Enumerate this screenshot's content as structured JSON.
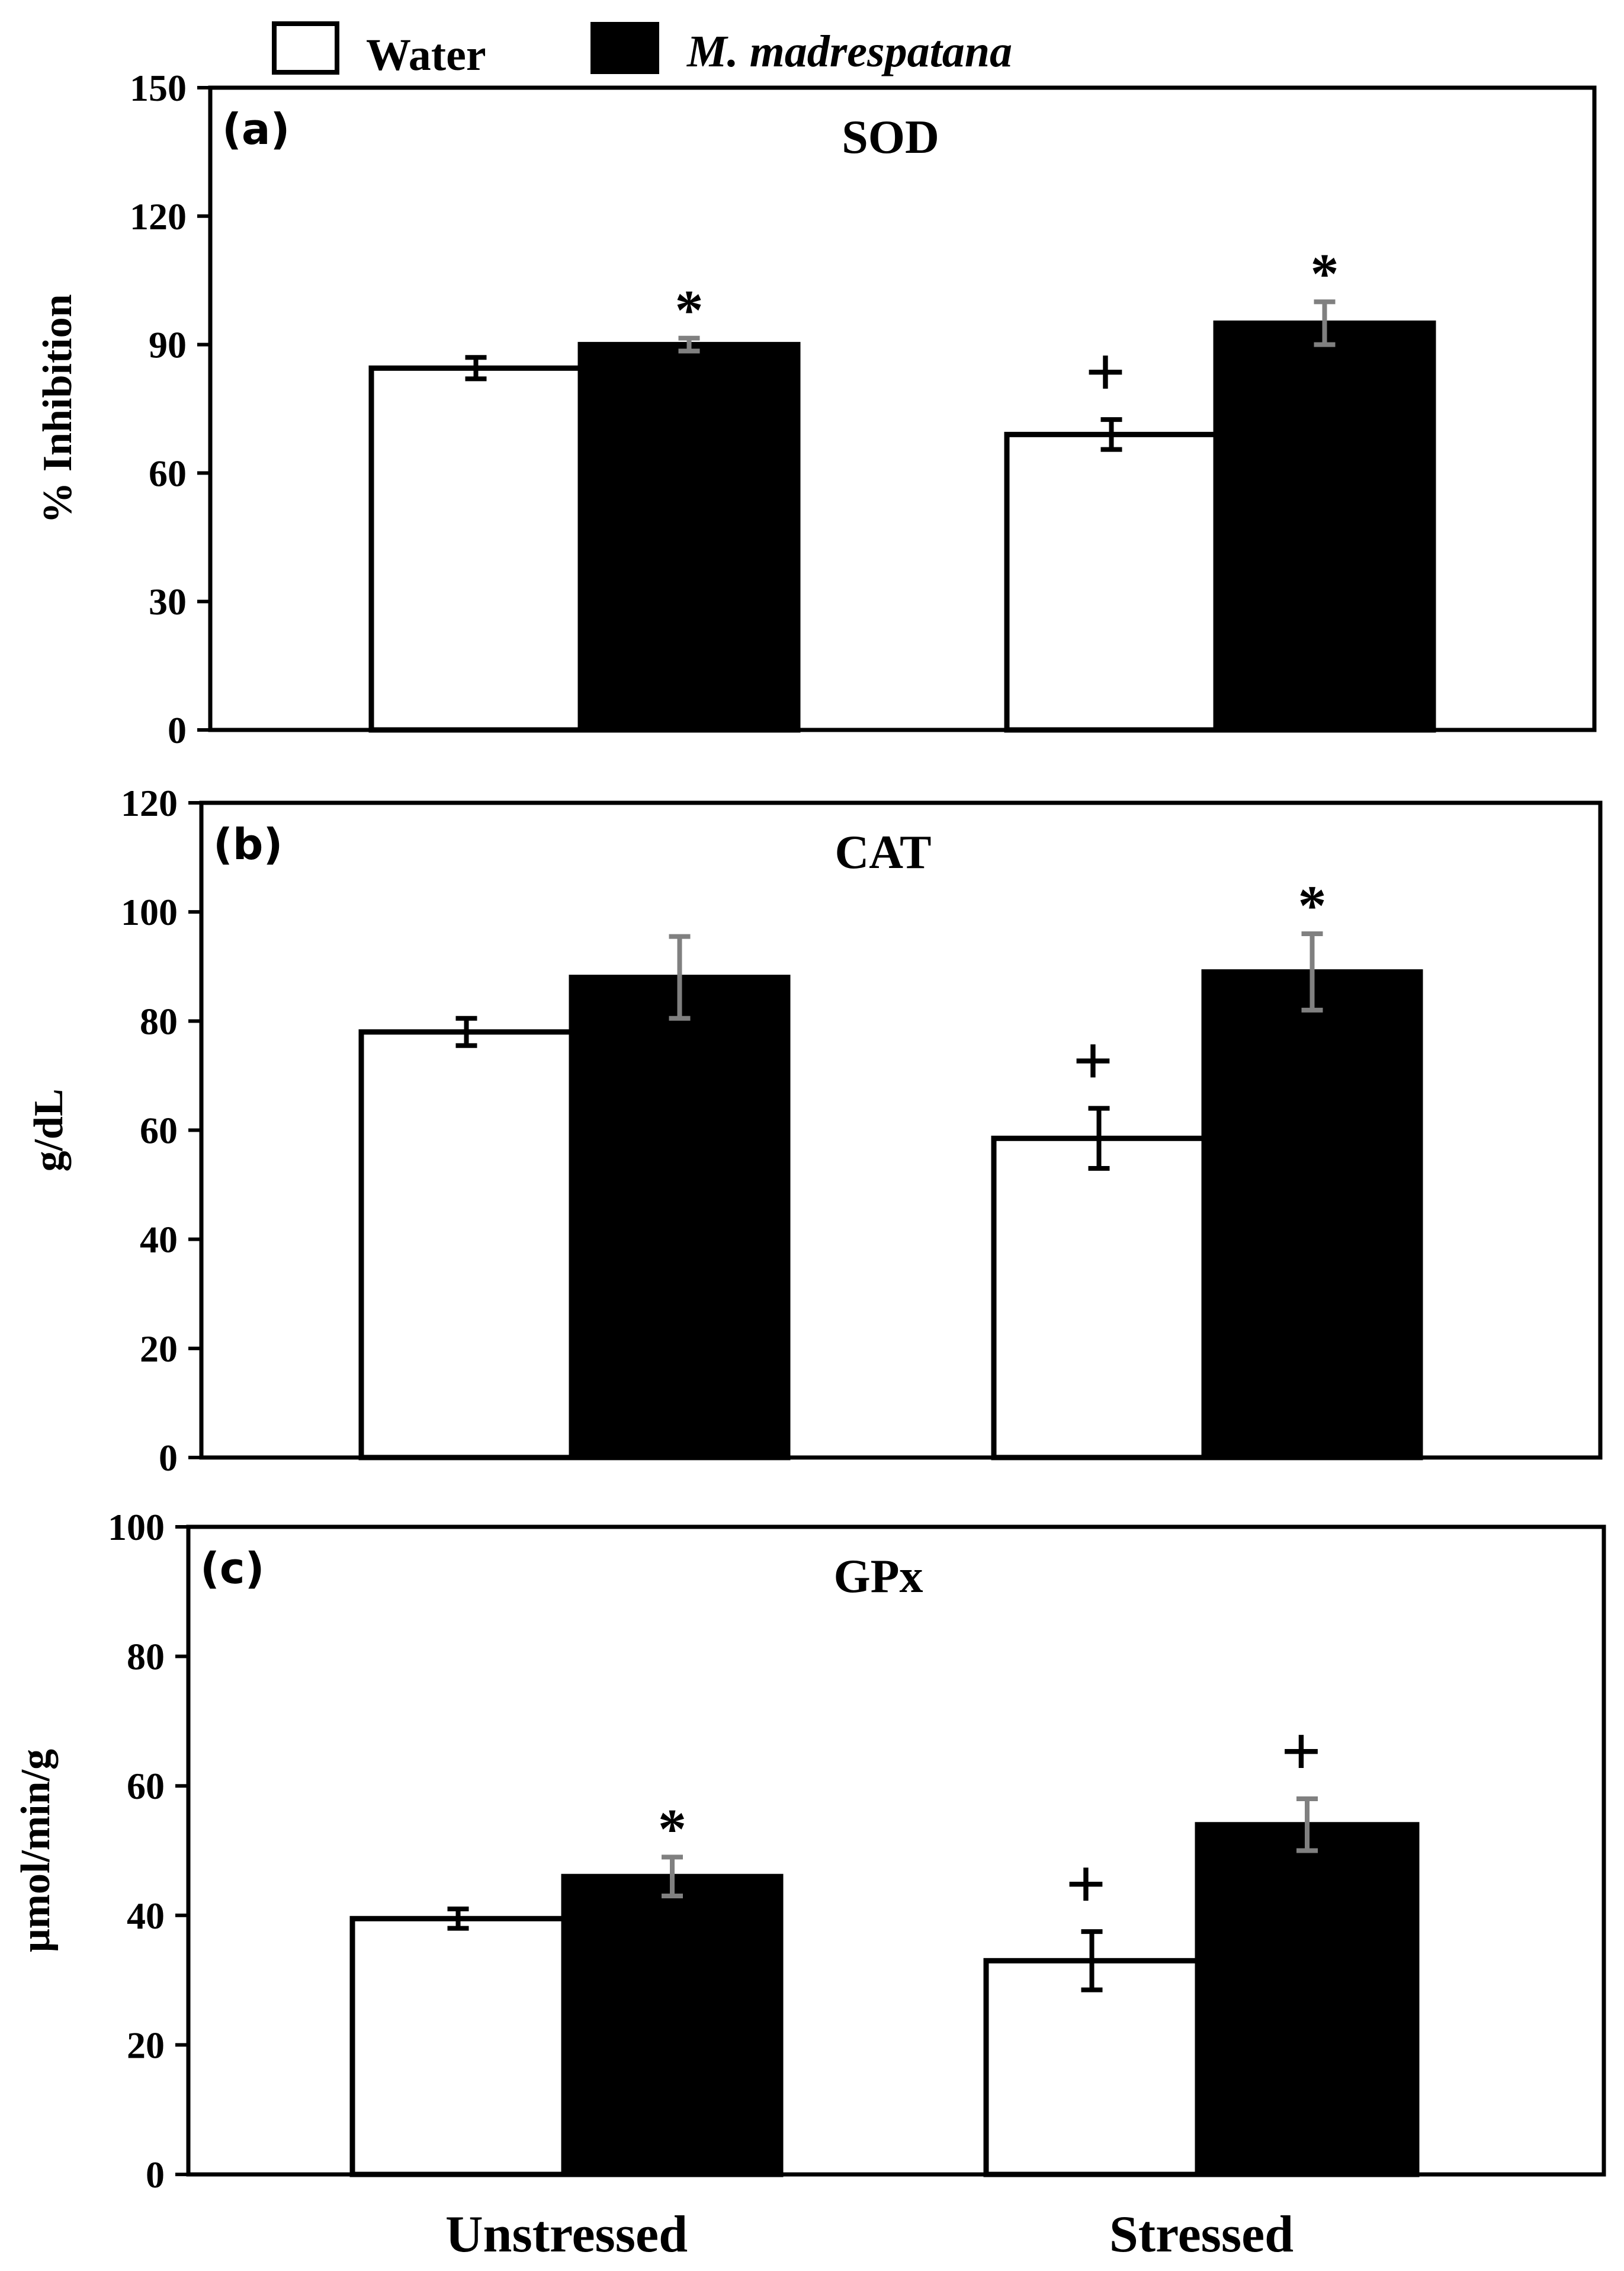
{
  "legend": [
    {
      "label": "Water",
      "fill": "#ffffff",
      "italic": false
    },
    {
      "label": "M. madrespatana",
      "fill": "#000000",
      "italic": true
    }
  ],
  "colors": {
    "axis": "#000000",
    "water_error": "#000000",
    "mm_error": "#808080"
  },
  "chart_data": [
    {
      "type": "bar",
      "panel": "(a)",
      "title": "SOD",
      "ylabel": "% Inhibition",
      "ylim": [
        0,
        150
      ],
      "yticks": [
        0,
        30,
        60,
        90,
        120,
        150
      ],
      "categories": [
        "Unstressed",
        "Stressed"
      ],
      "show_xlabels": false,
      "series": [
        {
          "name": "Water",
          "values": [
            84.5,
            69
          ],
          "errors": [
            2.5,
            3.5
          ],
          "marks": [
            "",
            "+"
          ]
        },
        {
          "name": "M. madrespatana",
          "values": [
            90,
            95
          ],
          "errors": [
            1.5,
            5
          ],
          "marks": [
            "*",
            "*"
          ]
        }
      ]
    },
    {
      "type": "bar",
      "panel": "(b)",
      "title": "CAT",
      "ylabel": "g/dL",
      "ylim": [
        0,
        120
      ],
      "yticks": [
        0,
        20,
        40,
        60,
        80,
        100,
        120
      ],
      "categories": [
        "Unstressed",
        "Stressed"
      ],
      "show_xlabels": false,
      "series": [
        {
          "name": "Water",
          "values": [
            78,
            58.5
          ],
          "errors": [
            2.5,
            5.5
          ],
          "marks": [
            "",
            "+"
          ]
        },
        {
          "name": "M. madrespatana",
          "values": [
            88,
            89
          ],
          "errors": [
            7.5,
            7
          ],
          "marks": [
            "",
            "*"
          ]
        }
      ]
    },
    {
      "type": "bar",
      "panel": "(c)",
      "title": "GPx",
      "ylabel": "μmol/min/g",
      "ylim": [
        0,
        100
      ],
      "yticks": [
        0,
        20,
        40,
        60,
        80,
        100
      ],
      "categories": [
        "Unstressed",
        "Stressed"
      ],
      "show_xlabels": true,
      "series": [
        {
          "name": "Water",
          "values": [
            39.5,
            33
          ],
          "errors": [
            1.5,
            4.5
          ],
          "marks": [
            "",
            "+"
          ]
        },
        {
          "name": "M. madrespatana",
          "values": [
            46,
            54
          ],
          "errors": [
            3,
            4
          ],
          "marks": [
            "*",
            "+"
          ]
        }
      ]
    }
  ]
}
